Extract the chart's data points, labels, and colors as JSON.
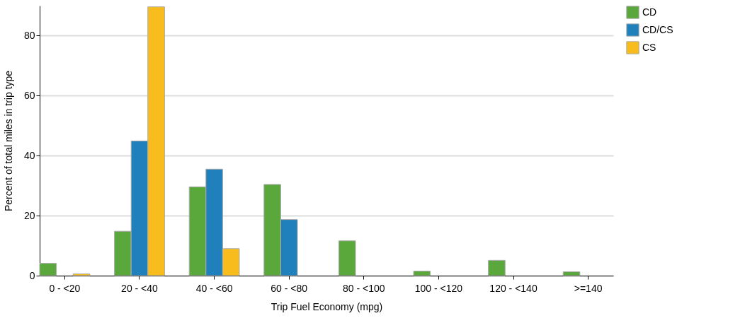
{
  "chart_data": {
    "type": "bar",
    "xlabel": "Trip Fuel Economy (mpg)",
    "ylabel": "Percent of total miles in trip type",
    "categories": [
      "0 - <20",
      "20 - <40",
      "40 - <60",
      "60 - <80",
      "80 - <100",
      "100 - <120",
      "120 - <140",
      ">=140"
    ],
    "series": [
      {
        "name": "CD",
        "color": "#5aa83c",
        "values": [
          4.1,
          14.8,
          29.6,
          30.4,
          11.6,
          1.5,
          5.1,
          1.3
        ]
      },
      {
        "name": "CD/CS",
        "color": "#2080bb",
        "values": [
          null,
          44.9,
          35.5,
          18.7,
          null,
          null,
          null,
          null
        ]
      },
      {
        "name": "CS",
        "color": "#f8bc1c",
        "values": [
          0.6,
          89.6,
          9.0,
          null,
          null,
          null,
          null,
          null
        ]
      }
    ],
    "ylim": [
      0,
      90
    ],
    "yticks": [
      0,
      20,
      40,
      60,
      80
    ],
    "grid": "y",
    "legend": "top right"
  }
}
